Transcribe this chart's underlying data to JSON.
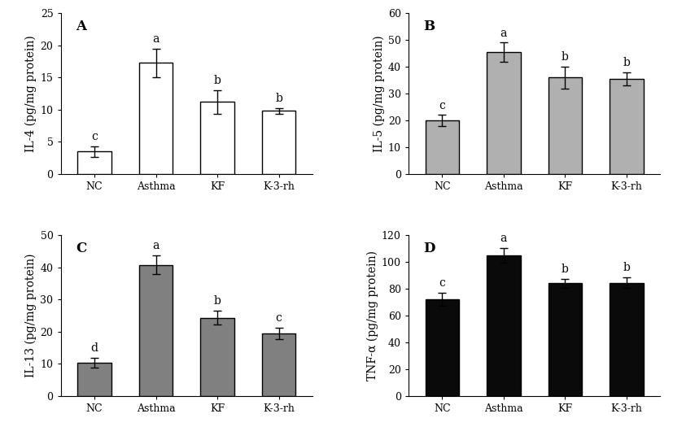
{
  "panels": [
    {
      "label": "A",
      "ylabel": "IL-4 (pg/mg protein)",
      "ylim": [
        0,
        25
      ],
      "yticks": [
        0,
        5,
        10,
        15,
        20,
        25
      ],
      "categories": [
        "NC",
        "Asthma",
        "KF",
        "K-3-rh"
      ],
      "values": [
        3.5,
        17.3,
        11.2,
        9.8
      ],
      "errors": [
        0.8,
        2.2,
        1.8,
        0.5
      ],
      "sig_labels": [
        "c",
        "a",
        "b",
        "b"
      ],
      "bar_color": "white",
      "bar_edgecolor": "black"
    },
    {
      "label": "B",
      "ylabel": "IL-5 (pg/mg protein)",
      "ylim": [
        0,
        60
      ],
      "yticks": [
        0,
        10,
        20,
        30,
        40,
        50,
        60
      ],
      "categories": [
        "NC",
        "Asthma",
        "KF",
        "K-3-rh"
      ],
      "values": [
        20.0,
        45.5,
        36.0,
        35.5
      ],
      "errors": [
        2.0,
        3.5,
        4.0,
        2.5
      ],
      "sig_labels": [
        "c",
        "a",
        "b",
        "b"
      ],
      "bar_color": "#b0b0b0",
      "bar_edgecolor": "black"
    },
    {
      "label": "C",
      "ylabel": "IL-13 (pg/mg protein)",
      "ylim": [
        0,
        50
      ],
      "yticks": [
        0,
        10,
        20,
        30,
        40,
        50
      ],
      "categories": [
        "NC",
        "Asthma",
        "KF",
        "K-3-rh"
      ],
      "values": [
        10.3,
        40.8,
        24.3,
        19.5
      ],
      "errors": [
        1.5,
        3.0,
        2.2,
        1.8
      ],
      "sig_labels": [
        "d",
        "a",
        "b",
        "c"
      ],
      "bar_color": "#808080",
      "bar_edgecolor": "black"
    },
    {
      "label": "D",
      "ylabel": "TNF-α (pg/mg protein)",
      "ylim": [
        0,
        120
      ],
      "yticks": [
        0,
        20,
        40,
        60,
        80,
        100,
        120
      ],
      "categories": [
        "NC",
        "Asthma",
        "KF",
        "K-3-rh"
      ],
      "values": [
        72.0,
        105.0,
        84.0,
        84.5
      ],
      "errors": [
        5.0,
        5.5,
        3.5,
        4.0
      ],
      "sig_labels": [
        "c",
        "a",
        "b",
        "b"
      ],
      "bar_color": "#0a0a0a",
      "bar_edgecolor": "black"
    }
  ],
  "background_color": "white",
  "ylabel_fontsize": 10,
  "tick_fontsize": 9,
  "sig_fontsize": 10,
  "panel_label_fontsize": 12,
  "bar_width": 0.55
}
